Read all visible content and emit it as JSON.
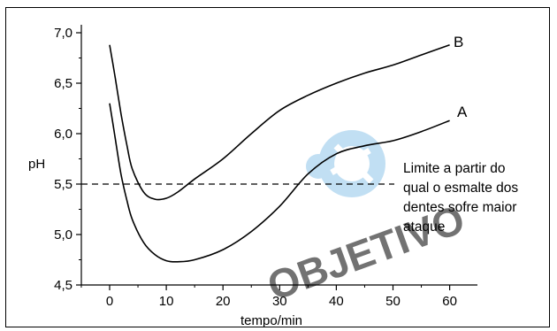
{
  "chart_data": {
    "type": "line",
    "title": "",
    "xlabel": "tempo/min",
    "ylabel": "pH",
    "xlim": [
      -5,
      60
    ],
    "ylim": [
      4.5,
      7.0
    ],
    "x_ticks": [
      "0",
      "10",
      "20",
      "30",
      "40",
      "50",
      "60"
    ],
    "y_ticks": [
      "4,5",
      "5,0",
      "5,5",
      "6,0",
      "6,5",
      "7,0"
    ],
    "grid": false,
    "series": [
      {
        "name": "A",
        "x": [
          0,
          1,
          2,
          3,
          4,
          6,
          8,
          10,
          12,
          15,
          20,
          25,
          30,
          35,
          40,
          45,
          50,
          55,
          60
        ],
        "y": [
          6.3,
          5.95,
          5.6,
          5.35,
          5.15,
          4.92,
          4.8,
          4.74,
          4.73,
          4.75,
          4.85,
          5.03,
          5.28,
          5.6,
          5.8,
          5.88,
          5.93,
          6.02,
          6.13
        ]
      },
      {
        "name": "B",
        "x": [
          0,
          1,
          2,
          3,
          4,
          6,
          8,
          10,
          12,
          15,
          20,
          25,
          30,
          35,
          40,
          45,
          50,
          55,
          60
        ],
        "y": [
          6.88,
          6.55,
          6.2,
          5.9,
          5.65,
          5.42,
          5.35,
          5.36,
          5.42,
          5.55,
          5.75,
          6.0,
          6.23,
          6.38,
          6.5,
          6.6,
          6.68,
          6.78,
          6.88
        ]
      }
    ],
    "threshold": {
      "y": 5.5,
      "style": "dashed",
      "label_lines": [
        "Limite a partir do",
        "qual o esmalte dos",
        "dentes sofre maior",
        "ataque"
      ]
    },
    "watermark": "OBJETIVO"
  }
}
